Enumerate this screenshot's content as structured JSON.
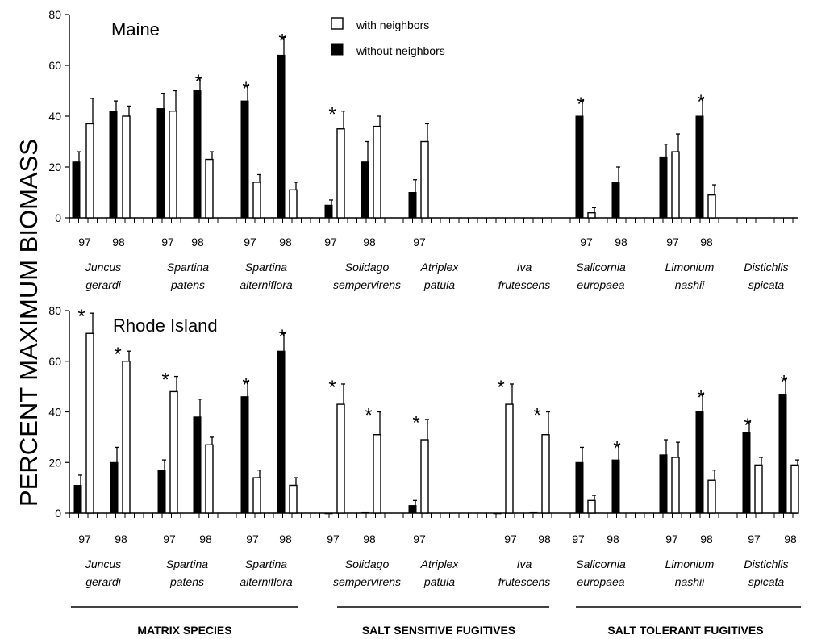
{
  "chart_data": {
    "type": "bar",
    "ylabel": "PERCENT MAXIMUM BIOMASS",
    "ylim": [
      0,
      80
    ],
    "yticks": [
      "0",
      "20",
      "40",
      "60",
      "80"
    ],
    "legend": {
      "placement": "top-center",
      "entries": [
        {
          "label": "with neighbors",
          "fill": "#ffffff"
        },
        {
          "label": "without neighbors",
          "fill": "#000000"
        }
      ]
    },
    "species": [
      [
        "Juncus",
        "gerardi"
      ],
      [
        "Spartina",
        "patens"
      ],
      [
        "Spartina",
        "alterniflora"
      ],
      [
        "Solidago",
        "sempervirens"
      ],
      [
        "Atriplex",
        "patula"
      ],
      [
        "Iva",
        "frutescens"
      ],
      [
        "Salicornia",
        "europaea"
      ],
      [
        "Limonium",
        "nashii"
      ],
      [
        "Distichlis",
        "spicata"
      ]
    ],
    "groups": [
      "MATRIX SPECIES",
      "SALT SENSITIVE FUGITIVES",
      "SALT TOLERANT FUGITIVES"
    ],
    "panels": [
      {
        "title": "Maine",
        "series_order": [
          "without neighbors",
          "with neighbors"
        ],
        "bars": [
          {
            "species": "Juncus gerardi",
            "year": "97",
            "without": 22,
            "without_err": 4,
            "with": 37,
            "with_err": 10
          },
          {
            "species": "Juncus gerardi",
            "year": "98",
            "without": 42,
            "without_err": 4,
            "with": 40,
            "with_err": 4
          },
          {
            "species": "Spartina patens",
            "year": "97",
            "without": 43,
            "without_err": 6,
            "with": 42,
            "with_err": 8
          },
          {
            "species": "Spartina patens",
            "year": "98",
            "without": 50,
            "without_err": 5,
            "with": 23,
            "with_err": 3,
            "star": true
          },
          {
            "species": "Spartina alterniflora",
            "year": "97",
            "without": 46,
            "without_err": 6,
            "with": 14,
            "with_err": 3,
            "star": true
          },
          {
            "species": "Spartina alterniflora",
            "year": "98",
            "without": 64,
            "without_err": 7,
            "with": 11,
            "with_err": 3,
            "star": true
          },
          {
            "species": "Solidago sempervirens",
            "year": "97",
            "without": 5,
            "without_err": 2,
            "with": 35,
            "with_err": 7,
            "star": true
          },
          {
            "species": "Solidago sempervirens",
            "year": "98",
            "without": 22,
            "without_err": 8,
            "with": 36,
            "with_err": 4
          },
          {
            "species": "Atriplex patula",
            "year": "97",
            "without": 10,
            "without_err": 5,
            "with": 30,
            "with_err": 7
          },
          {
            "species": "Salicornia europaea",
            "year": "97",
            "without": 40,
            "without_err": 6,
            "with": 2,
            "with_err": 2,
            "star": true
          },
          {
            "species": "Salicornia europaea",
            "year": "98",
            "without": 14,
            "without_err": 6,
            "with": null
          },
          {
            "species": "Limonium nashii",
            "year": "97",
            "without": 24,
            "without_err": 5,
            "with": 26,
            "with_err": 7
          },
          {
            "species": "Limonium nashii",
            "year": "98",
            "without": 40,
            "without_err": 7,
            "with": 9,
            "with_err": 4,
            "star": true
          }
        ]
      },
      {
        "title": "Rhode  Island",
        "series_order": [
          "without neighbors",
          "with neighbors"
        ],
        "bars": [
          {
            "species": "Juncus gerardi",
            "year": "97",
            "without": 11,
            "without_err": 4,
            "with": 71,
            "with_err": 8,
            "star": true
          },
          {
            "species": "Juncus gerardi",
            "year": "98",
            "without": 20,
            "without_err": 6,
            "with": 60,
            "with_err": 4,
            "star": true
          },
          {
            "species": "Spartina patens",
            "year": "97",
            "without": 17,
            "without_err": 4,
            "with": 48,
            "with_err": 6,
            "star": true
          },
          {
            "species": "Spartina patens",
            "year": "98",
            "without": 38,
            "without_err": 7,
            "with": 27,
            "with_err": 3
          },
          {
            "species": "Spartina alterniflora",
            "year": "97",
            "without": 46,
            "without_err": 6,
            "with": 14,
            "with_err": 3,
            "star": true
          },
          {
            "species": "Spartina alterniflora",
            "year": "98",
            "without": 64,
            "without_err": 7,
            "with": 11,
            "with_err": 3,
            "star": true
          },
          {
            "species": "Solidago sempervirens",
            "year": "97",
            "without": 0,
            "without_err": 0,
            "with": 43,
            "with_err": 8,
            "star": true
          },
          {
            "species": "Solidago sempervirens",
            "year": "98",
            "without": 0.5,
            "without_err": 0,
            "with": 31,
            "with_err": 9,
            "star": true
          },
          {
            "species": "Atriplex patula",
            "year": "97",
            "without": 3,
            "without_err": 2,
            "with": 29,
            "with_err": 8,
            "star": true
          },
          {
            "species": "Iva frutescens",
            "year": "97",
            "without": 0,
            "without_err": 0,
            "with": 43,
            "with_err": 8,
            "star": true
          },
          {
            "species": "Iva frutescens",
            "year": "98",
            "without": 0.5,
            "without_err": 0,
            "with": 31,
            "with_err": 9,
            "star": true
          },
          {
            "species": "Salicornia europaea",
            "year": "97",
            "without": 20,
            "without_err": 6,
            "with": 5,
            "with_err": 2
          },
          {
            "species": "Salicornia europaea",
            "year": "98",
            "without": 21,
            "without_err": 6,
            "with": null,
            "star": true
          },
          {
            "species": "Limonium nashii",
            "year": "97",
            "without": 23,
            "without_err": 6,
            "with": 22,
            "with_err": 6
          },
          {
            "species": "Limonium nashii",
            "year": "98",
            "without": 40,
            "without_err": 7,
            "with": 13,
            "with_err": 4,
            "star": true
          },
          {
            "species": "Distichlis spicata",
            "year": "97",
            "without": 32,
            "without_err": 4,
            "with": 19,
            "with_err": 3,
            "star": true
          },
          {
            "species": "Distichlis spicata",
            "year": "98",
            "without": 47,
            "without_err": 6,
            "with": 19,
            "with_err": 2,
            "star": true
          }
        ]
      }
    ]
  }
}
